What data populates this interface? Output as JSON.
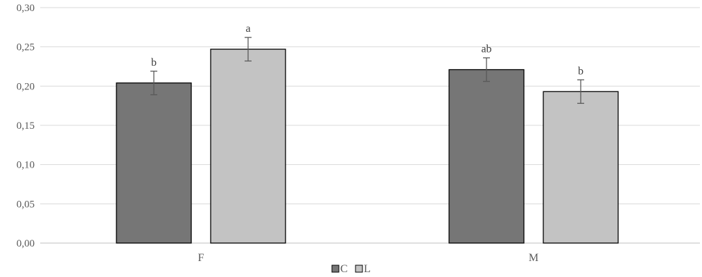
{
  "chart_data": {
    "type": "bar",
    "categories": [
      "F",
      "M"
    ],
    "series": [
      {
        "name": "C",
        "color": "#767676",
        "values": [
          0.204,
          0.221
        ],
        "errors": [
          0.015,
          0.015
        ],
        "labels": [
          "b",
          "ab"
        ]
      },
      {
        "name": "L",
        "color": "#c3c3c3",
        "values": [
          0.247,
          0.193
        ],
        "errors": [
          0.015,
          0.015
        ],
        "labels": [
          "a",
          "b"
        ]
      }
    ],
    "yticks": [
      "0,00",
      "0,05",
      "0,10",
      "0,15",
      "0,20",
      "0,25",
      "0,30"
    ],
    "ylim": [
      0,
      0.3
    ],
    "grid": true,
    "legend_position": "bottom-center"
  }
}
